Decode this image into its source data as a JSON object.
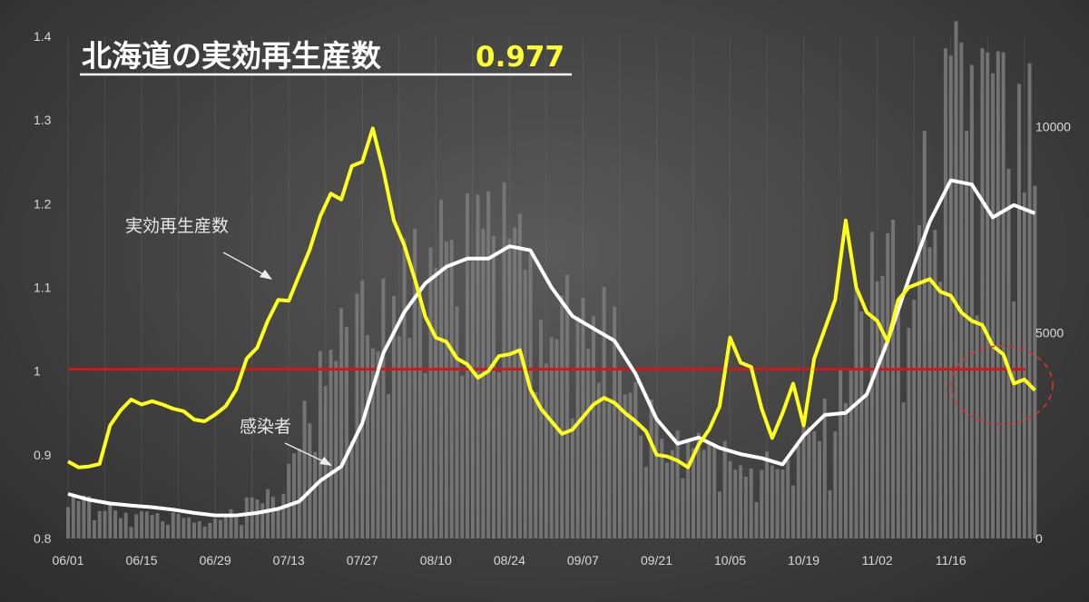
{
  "chart_data": {
    "type": "bar+line",
    "title": "北海道の実効再生産数",
    "title_value": "0.977",
    "annotations": {
      "rt_label": "実効再生産数",
      "cases_label": "感染者"
    },
    "x_ticks": [
      "06/01",
      "06/15",
      "06/29",
      "07/13",
      "07/27",
      "08/10",
      "08/24",
      "09/07",
      "09/21",
      "10/05",
      "10/19",
      "11/02",
      "11/16"
    ],
    "x_range": [
      "2021-06-01",
      "2021-11-30"
    ],
    "y_left": {
      "ticks": [
        "0.8",
        "0.9",
        "1",
        "1.1",
        "1.2",
        "1.3",
        "1.4"
      ],
      "ylim": [
        0.8,
        1.4
      ]
    },
    "y_right": {
      "ticks": [
        "0",
        "5000",
        "10000"
      ],
      "ylim": [
        0,
        12200
      ]
    },
    "grid": "vertical",
    "reference_line": {
      "value": 1.0,
      "color": "#d01818"
    },
    "highlight": {
      "shape": "dashed-circle",
      "color": "#d83030",
      "around": "latest values"
    },
    "colors": {
      "rt_line": "#ffff1e",
      "cases_line": "#ffffff",
      "bars": "#7c7c7c"
    },
    "series": [
      {
        "name": "実効再生産数",
        "axis": "left",
        "kind": "line",
        "points": [
          [
            "06/01",
            0.892
          ],
          [
            "06/03",
            0.885
          ],
          [
            "06/05",
            0.886
          ],
          [
            "06/07",
            0.889
          ],
          [
            "06/09",
            0.935
          ],
          [
            "06/11",
            0.953
          ],
          [
            "06/13",
            0.966
          ],
          [
            "06/15",
            0.96
          ],
          [
            "06/17",
            0.964
          ],
          [
            "06/19",
            0.96
          ],
          [
            "06/21",
            0.955
          ],
          [
            "06/23",
            0.952
          ],
          [
            "06/25",
            0.942
          ],
          [
            "06/27",
            0.94
          ],
          [
            "06/29",
            0.948
          ],
          [
            "07/01",
            0.958
          ],
          [
            "07/03",
            0.978
          ],
          [
            "07/05",
            1.015
          ],
          [
            "07/07",
            1.028
          ],
          [
            "07/09",
            1.06
          ],
          [
            "07/11",
            1.085
          ],
          [
            "07/13",
            1.084
          ],
          [
            "07/15",
            1.115
          ],
          [
            "07/17",
            1.145
          ],
          [
            "07/19",
            1.185
          ],
          [
            "07/21",
            1.212
          ],
          [
            "07/23",
            1.205
          ],
          [
            "07/25",
            1.245
          ],
          [
            "07/27",
            1.25
          ],
          [
            "07/29",
            1.29
          ],
          [
            "07/31",
            1.24
          ],
          [
            "08/02",
            1.18
          ],
          [
            "08/04",
            1.15
          ],
          [
            "08/06",
            1.11
          ],
          [
            "08/08",
            1.065
          ],
          [
            "08/10",
            1.04
          ],
          [
            "08/12",
            1.035
          ],
          [
            "08/14",
            1.015
          ],
          [
            "08/16",
            1.008
          ],
          [
            "08/18",
            0.992
          ],
          [
            "08/20",
            1.0
          ],
          [
            "08/22",
            1.018
          ],
          [
            "08/24",
            1.02
          ],
          [
            "08/26",
            1.025
          ],
          [
            "08/28",
            0.978
          ],
          [
            "08/30",
            0.955
          ],
          [
            "09/01",
            0.94
          ],
          [
            "09/03",
            0.925
          ],
          [
            "09/05",
            0.93
          ],
          [
            "09/07",
            0.945
          ],
          [
            "09/09",
            0.96
          ],
          [
            "09/11",
            0.968
          ],
          [
            "09/13",
            0.962
          ],
          [
            "09/15",
            0.95
          ],
          [
            "09/17",
            0.94
          ],
          [
            "09/19",
            0.928
          ],
          [
            "09/21",
            0.9
          ],
          [
            "09/23",
            0.898
          ],
          [
            "09/25",
            0.893
          ],
          [
            "09/27",
            0.885
          ],
          [
            "09/29",
            0.912
          ],
          [
            "10/01",
            0.93
          ],
          [
            "10/03",
            0.958
          ],
          [
            "10/05",
            1.04
          ],
          [
            "10/07",
            1.01
          ],
          [
            "10/09",
            1.005
          ],
          [
            "10/11",
            0.955
          ],
          [
            "10/13",
            0.92
          ],
          [
            "10/15",
            0.95
          ],
          [
            "10/17",
            0.985
          ],
          [
            "10/19",
            0.935
          ],
          [
            "10/21",
            1.015
          ],
          [
            "10/23",
            1.05
          ],
          [
            "10/25",
            1.085
          ],
          [
            "10/27",
            1.18
          ],
          [
            "10/29",
            1.1
          ],
          [
            "10/31",
            1.07
          ],
          [
            "11/02",
            1.06
          ],
          [
            "11/04",
            1.035
          ],
          [
            "11/06",
            1.085
          ],
          [
            "11/08",
            1.1
          ],
          [
            "11/10",
            1.105
          ],
          [
            "11/12",
            1.11
          ],
          [
            "11/14",
            1.095
          ],
          [
            "11/16",
            1.09
          ],
          [
            "11/18",
            1.07
          ],
          [
            "11/20",
            1.06
          ],
          [
            "11/22",
            1.055
          ],
          [
            "11/24",
            1.03
          ],
          [
            "11/26",
            1.02
          ],
          [
            "11/28",
            0.985
          ],
          [
            "11/30",
            0.99
          ],
          [
            "12/02",
            0.977
          ]
        ]
      },
      {
        "name": "感染者",
        "axis": "right",
        "kind": "line",
        "points": [
          [
            "06/01",
            1080
          ],
          [
            "06/05",
            940
          ],
          [
            "06/09",
            850
          ],
          [
            "06/13",
            800
          ],
          [
            "06/17",
            760
          ],
          [
            "06/21",
            700
          ],
          [
            "06/25",
            620
          ],
          [
            "06/29",
            560
          ],
          [
            "07/03",
            560
          ],
          [
            "07/07",
            620
          ],
          [
            "07/11",
            720
          ],
          [
            "07/15",
            900
          ],
          [
            "07/19",
            1400
          ],
          [
            "07/23",
            1750
          ],
          [
            "07/27",
            2800
          ],
          [
            "07/31",
            4500
          ],
          [
            "08/04",
            5500
          ],
          [
            "08/08",
            6200
          ],
          [
            "08/12",
            6600
          ],
          [
            "08/16",
            6800
          ],
          [
            "08/20",
            6800
          ],
          [
            "08/24",
            7100
          ],
          [
            "08/28",
            7000
          ],
          [
            "09/01",
            6100
          ],
          [
            "09/05",
            5400
          ],
          [
            "09/09",
            5100
          ],
          [
            "09/13",
            4800
          ],
          [
            "09/17",
            4000
          ],
          [
            "09/21",
            2900
          ],
          [
            "09/25",
            2300
          ],
          [
            "09/29",
            2450
          ],
          [
            "10/03",
            2200
          ],
          [
            "10/07",
            2050
          ],
          [
            "10/11",
            1950
          ],
          [
            "10/15",
            1800
          ],
          [
            "10/19",
            2500
          ],
          [
            "10/23",
            3000
          ],
          [
            "10/27",
            3050
          ],
          [
            "10/31",
            3500
          ],
          [
            "11/04",
            4800
          ],
          [
            "11/08",
            6300
          ],
          [
            "11/12",
            7700
          ],
          [
            "11/16",
            8700
          ],
          [
            "11/20",
            8600
          ],
          [
            "11/24",
            7800
          ],
          [
            "11/28",
            8100
          ],
          [
            "12/02",
            7900
          ]
        ]
      },
      {
        "name": "daily_cases",
        "axis": "right",
        "kind": "bar",
        "anchors": [
          [
            "06/01",
            1000
          ],
          [
            "06/11",
            650
          ],
          [
            "06/21",
            550
          ],
          [
            "06/29",
            400
          ],
          [
            "07/07",
            1000
          ],
          [
            "07/13",
            1500
          ],
          [
            "07/19",
            4500
          ],
          [
            "07/27",
            5200
          ],
          [
            "08/04",
            6000
          ],
          [
            "08/10",
            7600
          ],
          [
            "08/18",
            7300
          ],
          [
            "08/24",
            8700
          ],
          [
            "08/30",
            5500
          ],
          [
            "09/07",
            5300
          ],
          [
            "09/13",
            4900
          ],
          [
            "09/21",
            2500
          ],
          [
            "09/29",
            2600
          ],
          [
            "10/05",
            2000
          ],
          [
            "10/13",
            1800
          ],
          [
            "10/19",
            2400
          ],
          [
            "10/25",
            3000
          ],
          [
            "11/02",
            7500
          ],
          [
            "11/08",
            5500
          ],
          [
            "11/12",
            9200
          ],
          [
            "11/16",
            10400
          ],
          [
            "11/20",
            11300
          ],
          [
            "11/24",
            10800
          ],
          [
            "11/28",
            9500
          ],
          [
            "12/02",
            9700
          ]
        ]
      }
    ]
  }
}
